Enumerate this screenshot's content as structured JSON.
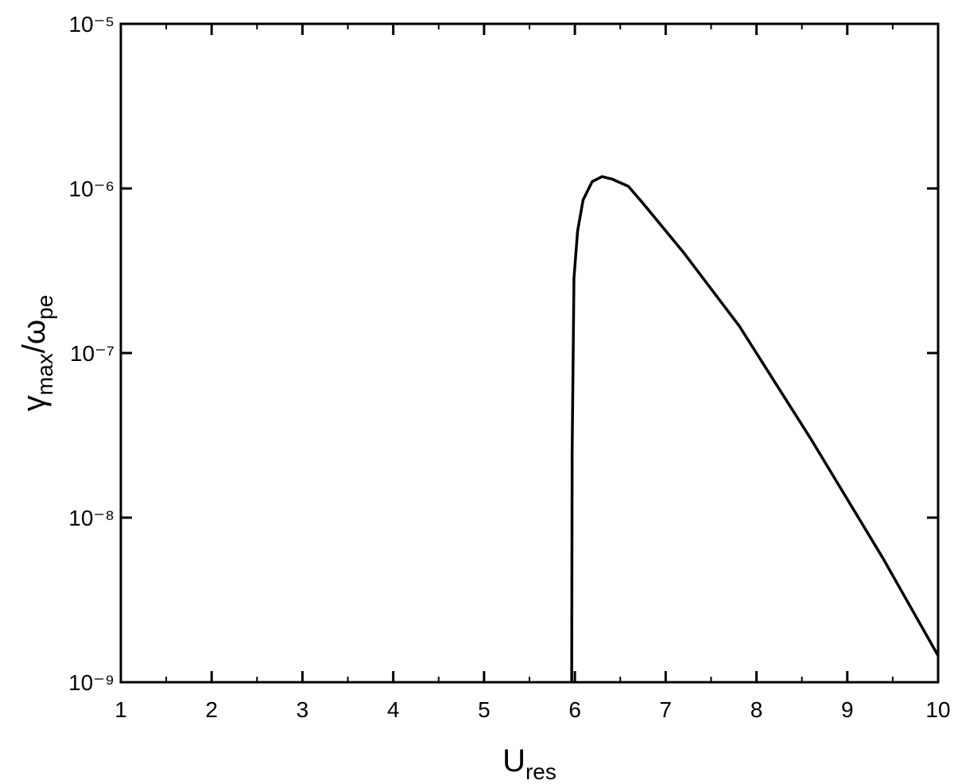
{
  "chart_data": {
    "type": "line",
    "xlabel": [
      "U",
      "res"
    ],
    "ylabel": [
      "γ",
      "max",
      "/ω",
      "pe"
    ],
    "log_y": true,
    "xlim": [
      1,
      10
    ],
    "xticks": [
      1,
      2,
      3,
      4,
      5,
      6,
      7,
      8,
      9,
      10
    ],
    "xminorticks": [
      1.5,
      2.5,
      3.5,
      4.5,
      5.5,
      6.5,
      7.5,
      8.5,
      9.5
    ],
    "ylim": [
      1e-09,
      1e-05
    ],
    "yticks": [
      {
        "value": 1e-09,
        "label": "10⁻⁹"
      },
      {
        "value": 1e-08,
        "label": "10⁻⁸"
      },
      {
        "value": 1e-07,
        "label": "10⁻⁷"
      },
      {
        "value": 1e-06,
        "label": "10⁻⁶"
      },
      {
        "value": 1e-05,
        "label": "10⁻⁵"
      }
    ],
    "series": [
      {
        "color": "#000000",
        "x": [
          5.965,
          5.97,
          5.99,
          6.03,
          6.09,
          6.19,
          6.3,
          6.41,
          6.59,
          6.76,
          7.2,
          7.81,
          8.6,
          9.39,
          10
        ],
        "values": [
          1e-09,
          2.5e-08,
          2.85e-07,
          5.5e-07,
          8.5e-07,
          1.1e-06,
          1.18e-06,
          1.14e-06,
          1.03e-06,
          8e-07,
          4.06e-07,
          1.46e-07,
          3e-08,
          5.7e-09,
          1.45e-09
        ]
      }
    ]
  }
}
